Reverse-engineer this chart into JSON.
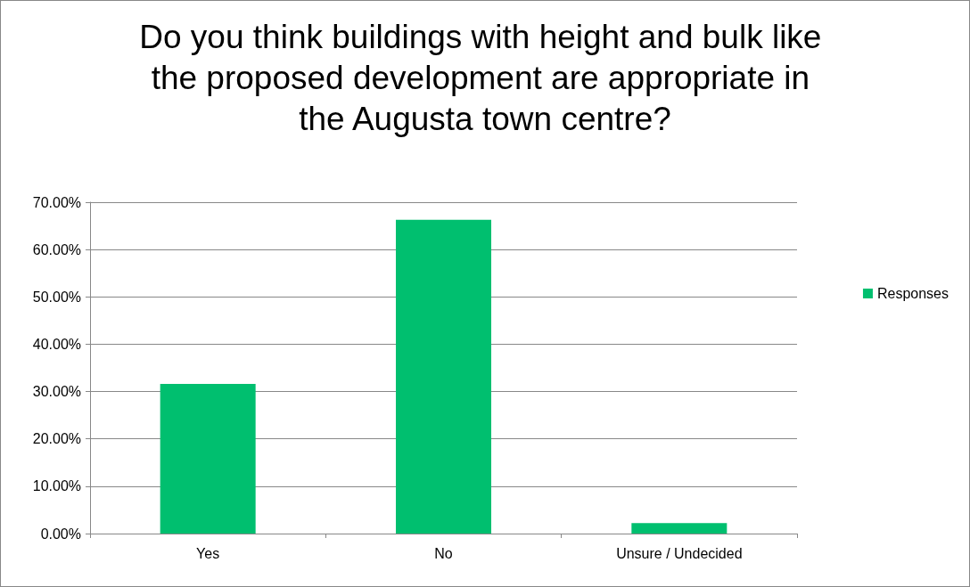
{
  "chart_data": {
    "type": "bar",
    "title": "Do you think buildings with height and bulk like the proposed development are appropriate in the Augusta town centre?",
    "categories": [
      "Yes",
      "No",
      "Unsure / Undecided"
    ],
    "series": [
      {
        "name": "Responses",
        "color": "#00bf6f",
        "values": [
          31.6,
          66.3,
          2.2
        ]
      }
    ],
    "ylim": [
      0,
      70
    ],
    "yticks": [
      {
        "value": 0,
        "label": "0.00%"
      },
      {
        "value": 10,
        "label": "10.00%"
      },
      {
        "value": 20,
        "label": "20.00%"
      },
      {
        "value": 30,
        "label": "30.00%"
      },
      {
        "value": 40,
        "label": "40.00%"
      },
      {
        "value": 50,
        "label": "50.00%"
      },
      {
        "value": 60,
        "label": "60.00%"
      },
      {
        "value": 70,
        "label": "70.00%"
      }
    ],
    "grid": "y",
    "legend": "right"
  }
}
